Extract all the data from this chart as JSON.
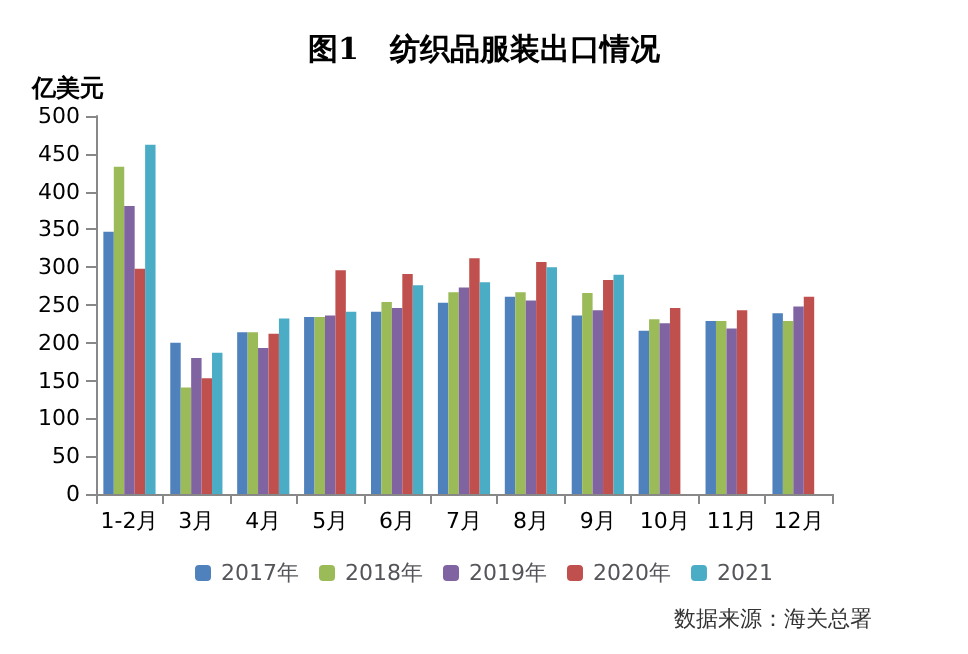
{
  "chart_data": {
    "type": "bar",
    "title": "图1   纺织品服装出口情况",
    "ylabel": "亿美元",
    "categories": [
      "1-2月",
      "3月",
      "4月",
      "5月",
      "6月",
      "7月",
      "8月",
      "9月",
      "10月",
      "11月",
      "12月"
    ],
    "series": [
      {
        "name": "2017年",
        "color": "#4f81bd",
        "values": [
          347,
          200,
          214,
          234,
          241,
          253,
          261,
          236,
          216,
          229,
          239
        ]
      },
      {
        "name": "2018年",
        "color": "#9bbb59",
        "values": [
          433,
          141,
          214,
          234,
          254,
          267,
          267,
          266,
          231,
          229,
          229
        ]
      },
      {
        "name": "2019年",
        "color": "#8064a2",
        "values": [
          381,
          180,
          193,
          236,
          246,
          273,
          256,
          243,
          226,
          219,
          248
        ]
      },
      {
        "name": "2020年",
        "color": "#c0504d",
        "values": [
          298,
          153,
          212,
          296,
          291,
          312,
          307,
          283,
          246,
          243,
          261
        ]
      },
      {
        "name": "2021",
        "color": "#4bacc6",
        "values": [
          462,
          187,
          232,
          241,
          276,
          280,
          300,
          290,
          null,
          null,
          null
        ]
      }
    ],
    "ylim": [
      0,
      500
    ],
    "yticks": [
      0,
      50,
      100,
      150,
      200,
      250,
      300,
      350,
      400,
      450,
      500
    ],
    "grid": false,
    "legend": "bottom",
    "annotations": [
      "数据来源：海关总署"
    ]
  }
}
